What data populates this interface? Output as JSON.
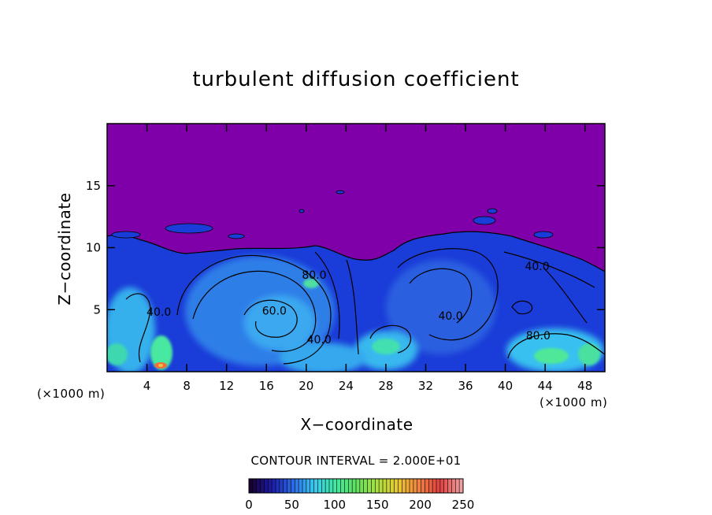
{
  "chart_data": {
    "type": "heatmap",
    "title": "turbulent diffusion coefficient",
    "xlabel": "X−coordinate",
    "ylabel": "Z−coordinate",
    "x_unit": "(×1000 m)",
    "y_unit": "(×1000 m)",
    "xlim": [
      0,
      50
    ],
    "ylim": [
      0,
      20
    ],
    "x_ticks": [
      4,
      8,
      12,
      16,
      20,
      24,
      28,
      32,
      36,
      40,
      44,
      48
    ],
    "y_ticks": [
      5,
      10,
      15
    ],
    "contour_interval_text": "CONTOUR INTERVAL = 2.000E+01",
    "contour_labels": [
      {
        "text": "80.0",
        "x": 20.8,
        "z": 7.5
      },
      {
        "text": "60.0",
        "x": 16.8,
        "z": 4.6
      },
      {
        "text": "40.0",
        "x": 21.3,
        "z": 2.3
      },
      {
        "text": "40.0",
        "x": 34.5,
        "z": 4.2
      },
      {
        "text": "40.0",
        "x": 43.2,
        "z": 8.2
      },
      {
        "text": "80.0",
        "x": 43.3,
        "z": 2.6
      },
      {
        "text": "40.0",
        "x": 5.2,
        "z": 4.5
      }
    ],
    "colorbar": {
      "min": 0,
      "max": 250,
      "ticks": [
        0,
        50,
        100,
        150,
        200,
        250
      ],
      "colors": [
        "#1a0033",
        "#1c1ca8",
        "#2a6ae6",
        "#38c8f0",
        "#40e8a0",
        "#60e060",
        "#a8e040",
        "#e8c830",
        "#f08040",
        "#e04040",
        "#f0a0a0"
      ]
    },
    "background_color": "#7f00a8"
  }
}
